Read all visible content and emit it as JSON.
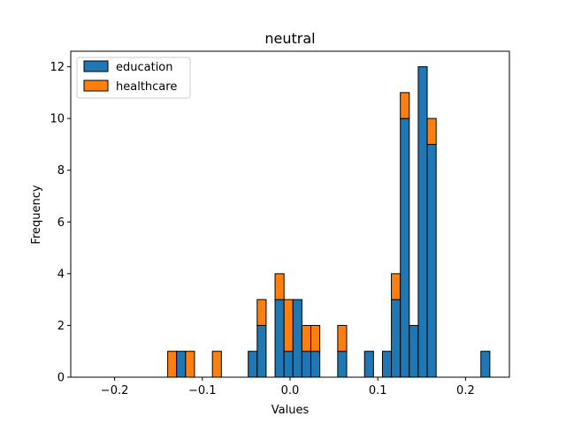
{
  "chart_data": {
    "type": "bar",
    "stacked": true,
    "title": "neutral",
    "xlabel": "Values",
    "ylabel": "Frequency",
    "xlim": [
      -0.25,
      0.25
    ],
    "ylim": [
      0,
      12.6
    ],
    "xticks": [
      "−0.2",
      "−0.1",
      "0.0",
      "0.1",
      "0.2"
    ],
    "xtick_values": [
      -0.2,
      -0.1,
      0.0,
      0.1,
      0.2
    ],
    "yticks": [
      "0",
      "2",
      "4",
      "6",
      "8",
      "10",
      "12"
    ],
    "ytick_values": [
      0,
      2,
      4,
      6,
      8,
      10,
      12
    ],
    "legend_position": "top-left",
    "grid": false,
    "bin_width": 0.0102,
    "bin_starts": [
      -0.1395,
      -0.1293,
      -0.1191,
      -0.1089,
      -0.0987,
      -0.0885,
      -0.0783,
      -0.0681,
      -0.0579,
      -0.0477,
      -0.0375,
      -0.0273,
      -0.0171,
      -0.0069,
      0.0033,
      0.0135,
      0.0237,
      0.0339,
      0.0441,
      0.0543,
      0.0645,
      0.0747,
      0.0849,
      0.0951,
      0.1053,
      0.1155,
      0.1257,
      0.1359,
      0.1461,
      0.1563,
      0.1665,
      0.1767,
      0.1869,
      0.1971,
      0.2073,
      0.2175
    ],
    "series": [
      {
        "name": "education",
        "color": "#1f77b4",
        "values": [
          0,
          1,
          0,
          0,
          0,
          0,
          0,
          0,
          0,
          1,
          2,
          0,
          3,
          1,
          3,
          1,
          1,
          0,
          0,
          1,
          0,
          0,
          1,
          0,
          1,
          3,
          10,
          2,
          12,
          9,
          0,
          0,
          0,
          0,
          0,
          1
        ]
      },
      {
        "name": "healthcare",
        "color": "#ff7f0e",
        "values": [
          1,
          0,
          1,
          0,
          0,
          1,
          0,
          0,
          0,
          0,
          1,
          0,
          1,
          2,
          0,
          1,
          1,
          0,
          0,
          1,
          0,
          0,
          0,
          0,
          0,
          1,
          1,
          0,
          0,
          1,
          0,
          0,
          0,
          0,
          0,
          0
        ]
      }
    ]
  }
}
